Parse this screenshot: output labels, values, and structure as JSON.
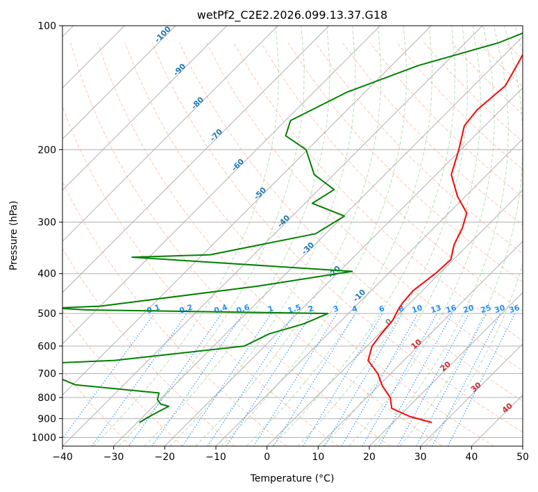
{
  "chart_data": {
    "type": "line",
    "subtype": "skew-t log-p",
    "title": "wetPf2_C2E2.2026.099.13.37.G18",
    "xlabel": "Temperature (°C)",
    "ylabel": "Pressure (hPa)",
    "xlim": [
      -40,
      50
    ],
    "ylim": [
      1050,
      100
    ],
    "y_scale": "log",
    "grid": true,
    "x_ticks": [
      "−40",
      "−30",
      "−20",
      "−10",
      "0",
      "10",
      "20",
      "30",
      "40",
      "50"
    ],
    "y_ticks": [
      "100",
      "200",
      "300",
      "400",
      "500",
      "600",
      "700",
      "800",
      "900",
      "1000"
    ],
    "colors": {
      "temperature": "#ff0000",
      "dewpoint": "#008000",
      "isotherm_labels": "#1f77b4",
      "mixing_ratio_labels": "#1e90ff",
      "dry_adiabat": "#ff7f50",
      "moist_adiabat": "#2ca02c",
      "theta_e_labels": "#d62728",
      "grid": "#b0b0b0"
    },
    "isotherm_labels": [
      "-100",
      "-90",
      "-80",
      "-70",
      "-60",
      "-50",
      "-40",
      "-30",
      "-20",
      "-10"
    ],
    "mixing_ratio_labels": [
      "0.1",
      "0.2",
      "0.4",
      "0.6",
      "1",
      "1.5",
      "2",
      "3",
      "4",
      "6",
      "8",
      "10",
      "13",
      "16",
      "20",
      "25",
      "30",
      "36"
    ],
    "theta_e_labels": [
      "0",
      "10",
      "20",
      "30",
      "40"
    ],
    "series": [
      {
        "name": "temperature",
        "color": "#ff0000",
        "points": [
          [
            -29.0,
            100
          ],
          [
            -27.5,
            110
          ],
          [
            -25.5,
            125
          ],
          [
            -23.8,
            140
          ],
          [
            -24.6,
            160
          ],
          [
            -24.0,
            175
          ],
          [
            -20.4,
            200
          ],
          [
            -17.0,
            230
          ],
          [
            -11.5,
            260
          ],
          [
            -6.5,
            285
          ],
          [
            -4.4,
            310
          ],
          [
            -2.8,
            340
          ],
          [
            -0.5,
            370
          ],
          [
            -0.8,
            400
          ],
          [
            -1.8,
            440
          ],
          [
            -1.5,
            470
          ],
          [
            -1.0,
            490
          ],
          [
            0.0,
            520
          ],
          [
            0.4,
            560
          ],
          [
            1.0,
            600
          ],
          [
            3.0,
            650
          ],
          [
            7.5,
            700
          ],
          [
            10.8,
            750
          ],
          [
            14.6,
            800
          ],
          [
            17.0,
            850
          ],
          [
            22.2,
            890
          ],
          [
            27.6,
            920
          ]
        ]
      },
      {
        "name": "dewpoint",
        "color": "#008000",
        "points": [
          [
            -28.5,
            100
          ],
          [
            -33.5,
            110
          ],
          [
            -44.8,
            125
          ],
          [
            -53.5,
            145
          ],
          [
            -59.0,
            170
          ],
          [
            -57.0,
            185
          ],
          [
            -50.3,
            200
          ],
          [
            -43.8,
            230
          ],
          [
            -37.0,
            250
          ],
          [
            -38.6,
            270
          ],
          [
            -29.8,
            290
          ],
          [
            -32.0,
            320
          ],
          [
            -48.5,
            360
          ],
          [
            -63.3,
            365
          ],
          [
            -17.5,
            395
          ],
          [
            -33.5,
            430
          ],
          [
            -60.0,
            480
          ],
          [
            -68.5,
            485
          ],
          [
            -62.0,
            490
          ],
          [
            -14.0,
            500
          ],
          [
            -16.7,
            530
          ],
          [
            -21.5,
            560
          ],
          [
            -24.0,
            600
          ],
          [
            -46.5,
            650
          ],
          [
            -69.5,
            670
          ],
          [
            -56.0,
            705
          ],
          [
            -49.5,
            745
          ],
          [
            -31.5,
            780
          ],
          [
            -30.5,
            810
          ],
          [
            -29.0,
            830
          ],
          [
            -27.0,
            840
          ],
          [
            -28.5,
            880
          ],
          [
            -29.6,
            920
          ]
        ]
      }
    ]
  }
}
